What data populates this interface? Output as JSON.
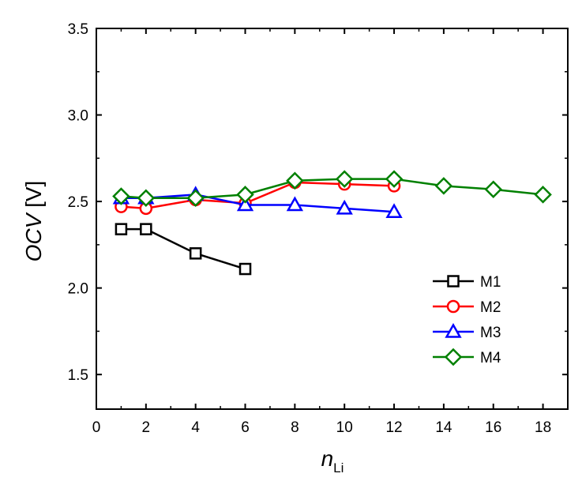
{
  "chart_data": {
    "type": "line",
    "title": "",
    "xlabel": {
      "main": "n",
      "sub": "Li"
    },
    "ylabel": {
      "italic": "OCV",
      "unit": " [V]"
    },
    "xlim": [
      0,
      19
    ],
    "ylim": [
      1.3,
      3.5
    ],
    "xticks": [
      0,
      2,
      4,
      6,
      8,
      10,
      12,
      14,
      16,
      18
    ],
    "yticks": [
      1.5,
      2.0,
      2.5,
      3.0,
      3.5
    ],
    "xtick_labels": [
      "0",
      "2",
      "4",
      "6",
      "8",
      "10",
      "12",
      "14",
      "16",
      "18"
    ],
    "ytick_labels": [
      "1.5",
      "2.0",
      "2.5",
      "3.0",
      "3.5"
    ],
    "grid": false,
    "legend_position": "lower-right",
    "series": [
      {
        "name": "M1",
        "color": "#000000",
        "marker": "square",
        "x": [
          1,
          2,
          4,
          6
        ],
        "y": [
          2.34,
          2.34,
          2.2,
          2.11
        ]
      },
      {
        "name": "M2",
        "color": "#ff0000",
        "marker": "circle",
        "x": [
          1,
          2,
          4,
          6,
          8,
          10,
          12
        ],
        "y": [
          2.47,
          2.46,
          2.51,
          2.49,
          2.61,
          2.6,
          2.59
        ]
      },
      {
        "name": "M3",
        "color": "#0000ff",
        "marker": "triangle",
        "x": [
          1,
          2,
          4,
          6,
          8,
          10,
          12
        ],
        "y": [
          2.52,
          2.52,
          2.54,
          2.48,
          2.48,
          2.46,
          2.44
        ]
      },
      {
        "name": "M4",
        "color": "#008000",
        "marker": "diamond",
        "x": [
          1,
          2,
          4,
          6,
          8,
          10,
          12,
          14,
          16,
          18
        ],
        "y": [
          2.53,
          2.52,
          2.52,
          2.54,
          2.62,
          2.63,
          2.63,
          2.59,
          2.57,
          2.54
        ]
      }
    ]
  }
}
